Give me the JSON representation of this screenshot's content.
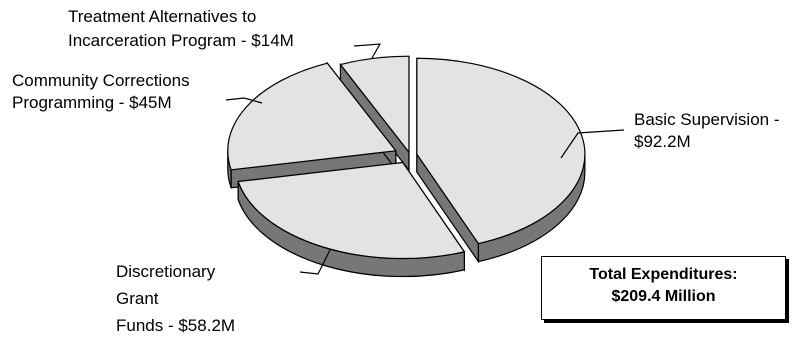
{
  "chart_data": {
    "type": "pie",
    "style": "3d-exploded",
    "categories": [
      "Basic Supervision",
      "Discretionary Grant Funds",
      "Community Corrections Programming",
      "Treatment Alternatives to Incarceration Program"
    ],
    "values": [
      92.2,
      58.2,
      45,
      14
    ],
    "unit": "$M",
    "slices": [
      {
        "lines": [
          "Basic Supervision -",
          "$92.2M"
        ]
      },
      {
        "lines": [
          "Discretionary",
          "Grant",
          "Funds - $58.2M"
        ]
      },
      {
        "lines": [
          "Community Corrections",
          "Programming - $45M"
        ]
      },
      {
        "lines": [
          "Treatment Alternatives to",
          "Incarceration Program - $14M"
        ]
      }
    ],
    "colors": {
      "top": "#e3e3e3",
      "side": "#777777",
      "outline": "#000000"
    }
  },
  "total_box": {
    "line1": "Total Expenditures:",
    "line2": "$209.4 Million"
  }
}
